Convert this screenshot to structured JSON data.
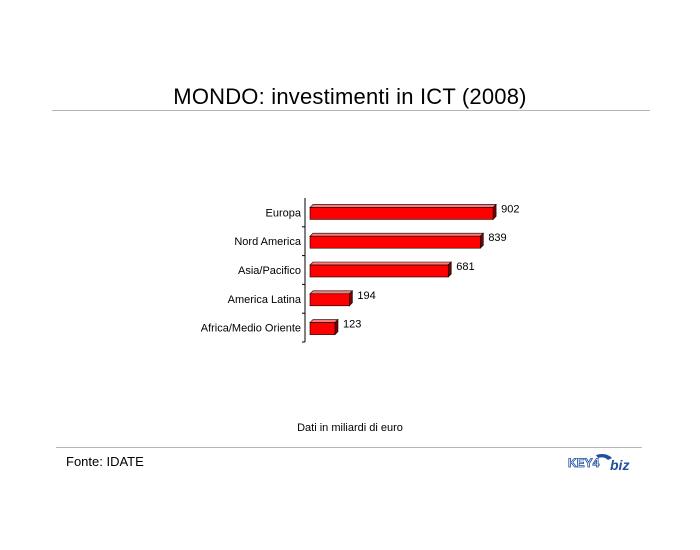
{
  "source": "Fonte: IDATE",
  "logo_text": "KEY4biz",
  "colors": {
    "bar": "#ff0000",
    "bar_top": "#ff7a7a",
    "bar_side": "#7a0000",
    "logo": "#1f4fa0"
  },
  "chart_data": {
    "type": "bar",
    "orientation": "horizontal",
    "title": "MONDO: investimenti in ICT (2008)",
    "note": "Dati in miliardi di euro",
    "categories": [
      "Europa",
      "Nord America",
      "Asia/Pacifico",
      "America Latina",
      "Africa/Medio Oriente"
    ],
    "values": [
      902,
      839,
      681,
      194,
      123
    ],
    "xlim": [
      0,
      1000
    ],
    "grid": false,
    "legend": "none"
  }
}
